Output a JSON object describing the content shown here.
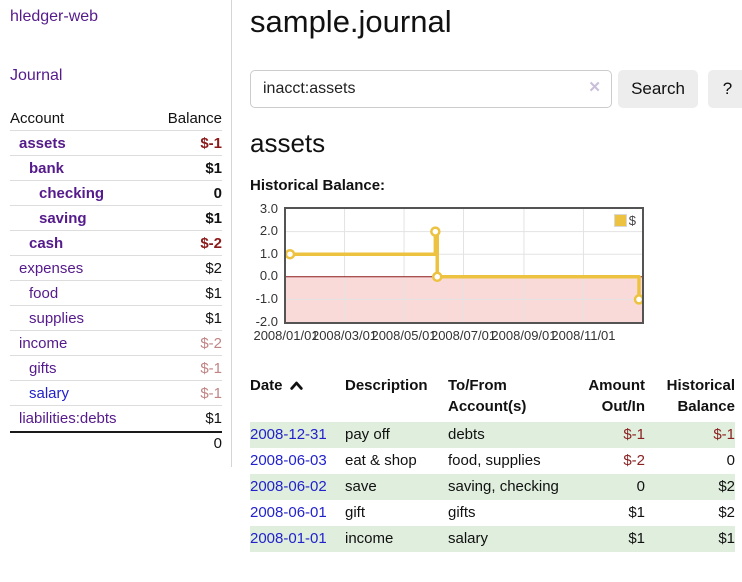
{
  "app": {
    "brand": "hledger-web"
  },
  "sidebar": {
    "nav_journal": "Journal",
    "table": {
      "account_header": "Account",
      "balance_header": "Balance",
      "accounts": [
        {
          "name": "assets",
          "indent": 1,
          "link": "purple",
          "emph": true,
          "balance": "$-1",
          "bal": "neg"
        },
        {
          "name": "bank",
          "indent": 2,
          "link": "purple",
          "emph": true,
          "balance": "$1",
          "bal": "emph"
        },
        {
          "name": "checking",
          "indent": 3,
          "link": "purple",
          "emph": true,
          "balance": "0",
          "bal": "emph"
        },
        {
          "name": "saving",
          "indent": 3,
          "link": "purple",
          "emph": true,
          "balance": "$1",
          "bal": "emph"
        },
        {
          "name": "cash",
          "indent": 2,
          "link": "purple",
          "emph": true,
          "balance": "$-2",
          "bal": "neg"
        },
        {
          "name": "expenses",
          "indent": 1,
          "link": "purple",
          "emph": false,
          "balance": "$2",
          "bal": "plain"
        },
        {
          "name": "food",
          "indent": 2,
          "link": "purple",
          "emph": false,
          "balance": "$1",
          "bal": "plain"
        },
        {
          "name": "supplies",
          "indent": 2,
          "link": "purple",
          "emph": false,
          "balance": "$1",
          "bal": "plain"
        },
        {
          "name": "income",
          "indent": 1,
          "link": "purple",
          "emph": false,
          "balance": "$-2",
          "bal": "muted"
        },
        {
          "name": "gifts",
          "indent": 2,
          "link": "purple",
          "emph": false,
          "balance": "$-1",
          "bal": "muted"
        },
        {
          "name": "salary",
          "indent": 2,
          "link": "blue",
          "emph": false,
          "balance": "$-1",
          "bal": "muted"
        },
        {
          "name": "liabilities:debts",
          "indent": 1,
          "link": "purple",
          "emph": false,
          "balance": "$1",
          "bal": "plain"
        }
      ],
      "total": "0"
    }
  },
  "main": {
    "title": "sample.journal",
    "search": {
      "query": "inacct:assets",
      "clear_icon": "✕",
      "button_label": "Search",
      "help_label": "?"
    },
    "account_heading": "assets",
    "chart_label": "Historical Balance:",
    "register": {
      "headers": {
        "date": "Date",
        "description": "Description",
        "accounts": "To/From Account(s)",
        "amount": "Amount Out/In",
        "balance": "Historical Balance"
      },
      "rows": [
        {
          "date": "2008-12-31",
          "description": "pay off",
          "accounts": "debts",
          "amount": "$-1",
          "balance": "$-1"
        },
        {
          "date": "2008-06-03",
          "description": "eat & shop",
          "accounts": "food, supplies",
          "amount": "$-2",
          "balance": "0"
        },
        {
          "date": "2008-06-02",
          "description": "save",
          "accounts": "saving, checking",
          "amount": "0",
          "balance": "$2"
        },
        {
          "date": "2008-06-01",
          "description": "gift",
          "accounts": "gifts",
          "amount": "$1",
          "balance": "$2"
        },
        {
          "date": "2008-01-01",
          "description": "income",
          "accounts": "salary",
          "amount": "$1",
          "balance": "$1"
        }
      ]
    }
  },
  "chart_data": {
    "type": "line",
    "step": true,
    "title": "Historical Balance",
    "xmin": "2008-01-01",
    "xmax": "2008-12-31",
    "ylim": [
      -2,
      3
    ],
    "yticks": [
      3.0,
      2.0,
      1.0,
      0.0,
      -1.0,
      -2.0
    ],
    "ytick_labels": [
      "3.0",
      "2.0",
      "1.0",
      "0.0",
      "-1.0",
      "-2.0"
    ],
    "xticks": [
      "2008/01/01",
      "2008/03/01",
      "2008/05/01",
      "2008/07/01",
      "2008/09/01",
      "2008/11/01"
    ],
    "series": [
      {
        "name": "$",
        "color": "#edc240",
        "points": [
          [
            "2008-01-01",
            1
          ],
          [
            "2008-06-01",
            2
          ],
          [
            "2008-06-03",
            0
          ],
          [
            "2008-12-31",
            -1
          ]
        ]
      }
    ],
    "grid": true,
    "legend_position": "top-right",
    "zero_line_color": "#8b1a1a",
    "negative_fill": "#fad9d9"
  },
  "colors": {
    "link_purple": "#551a8b",
    "link_blue": "#2222cc",
    "negative": "#8b1a1a",
    "muted_negative": "#c08484",
    "row_green": "#dfeedd",
    "series_gold": "#edc240",
    "negative_region": "#fad9d9",
    "zero_line": "#8b1a1a",
    "chart_border": "#545454"
  }
}
